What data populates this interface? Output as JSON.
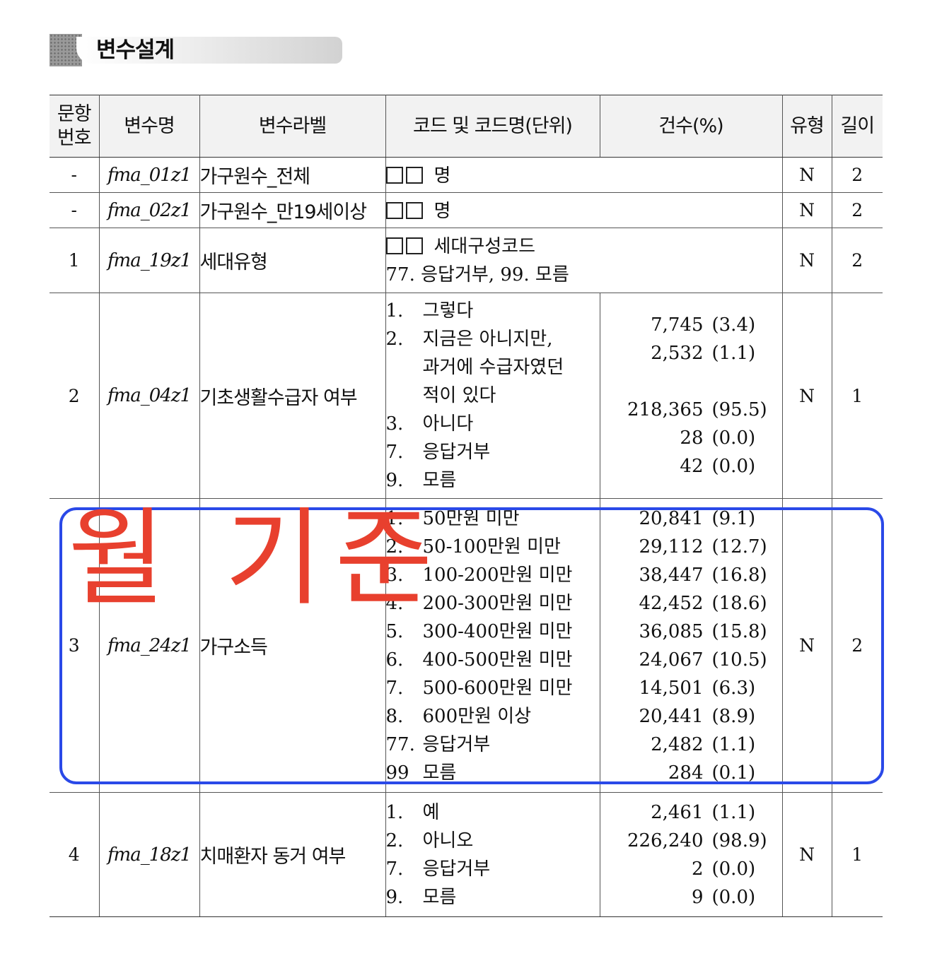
{
  "section": {
    "title": "변수설계"
  },
  "table": {
    "headers": {
      "qnum": "문항 번호",
      "varname": "변수명",
      "varlabel": "변수라벨",
      "code": "코드 및 코드명(단위)",
      "count": "건수(%)",
      "type": "유형",
      "length": "길이"
    },
    "rows": [
      {
        "qnum": "-",
        "varname": "fma_01z1",
        "label": "가구원수_전체",
        "unit": "명",
        "type": "N",
        "length": "2"
      },
      {
        "qnum": "-",
        "varname": "fma_02z1",
        "label": "가구원수_만19세이상",
        "unit": "명",
        "type": "N",
        "length": "2"
      },
      {
        "qnum": "1",
        "varname": "fma_19z1",
        "label": "세대유형",
        "unit": "세대구성코드",
        "extra": "77. 응답거부, 99. 모름",
        "type": "N",
        "length": "2"
      },
      {
        "qnum": "2",
        "varname": "fma_04z1",
        "label": "기초생활수급자 여부",
        "codes": [
          {
            "k": "1.",
            "lines": [
              "그렇다"
            ]
          },
          {
            "k": "2.",
            "lines": [
              "지금은 아니지만,",
              "과거에 수급자였던",
              "적이 있다"
            ]
          },
          {
            "k": "3.",
            "lines": [
              "아니다"
            ]
          },
          {
            "k": "7.",
            "lines": [
              "응답거부"
            ]
          },
          {
            "k": "9.",
            "lines": [
              "모름"
            ]
          }
        ],
        "counts": [
          {
            "n": "7,745",
            "p": "(3.4)"
          },
          {
            "n": "2,532",
            "p": "(1.1)"
          },
          {
            "n": "218,365",
            "p": "(95.5)"
          },
          {
            "n": "28",
            "p": "(0.0)"
          },
          {
            "n": "42",
            "p": "(0.0)"
          }
        ],
        "type": "N",
        "length": "1"
      },
      {
        "qnum": "3",
        "varname": "fma_24z1",
        "label": "가구소득",
        "codes": [
          {
            "k": "1.",
            "lines": [
              "50만원 미만"
            ]
          },
          {
            "k": "2.",
            "lines": [
              "50-100만원 미만"
            ]
          },
          {
            "k": "3.",
            "lines": [
              "100-200만원 미만"
            ]
          },
          {
            "k": "4.",
            "lines": [
              "200-300만원 미만"
            ]
          },
          {
            "k": "5.",
            "lines": [
              "300-400만원 미만"
            ]
          },
          {
            "k": "6.",
            "lines": [
              "400-500만원 미만"
            ]
          },
          {
            "k": "7.",
            "lines": [
              "500-600만원 미만"
            ]
          },
          {
            "k": "8.",
            "lines": [
              "600만원 이상"
            ]
          },
          {
            "k": "77.",
            "lines": [
              "응답거부"
            ]
          },
          {
            "k": "99",
            "lines": [
              "모름"
            ]
          }
        ],
        "counts": [
          {
            "n": "20,841",
            "p": "(9.1)"
          },
          {
            "n": "29,112",
            "p": "(12.7)"
          },
          {
            "n": "38,447",
            "p": "(16.8)"
          },
          {
            "n": "42,452",
            "p": "(18.6)"
          },
          {
            "n": "36,085",
            "p": "(15.8)"
          },
          {
            "n": "24,067",
            "p": "(10.5)"
          },
          {
            "n": "14,501",
            "p": "(6.3)"
          },
          {
            "n": "20,441",
            "p": "(8.9)"
          },
          {
            "n": "2,482",
            "p": "(1.1)"
          },
          {
            "n": "284",
            "p": "(0.1)"
          }
        ],
        "type": "N",
        "length": "2"
      },
      {
        "qnum": "4",
        "varname": "fma_18z1",
        "label": "치매환자 동거 여부",
        "codes": [
          {
            "k": "1.",
            "lines": [
              "예"
            ]
          },
          {
            "k": "2.",
            "lines": [
              "아니오"
            ]
          },
          {
            "k": "7.",
            "lines": [
              "응답거부"
            ]
          },
          {
            "k": "9.",
            "lines": [
              "모름"
            ]
          }
        ],
        "counts": [
          {
            "n": "2,461",
            "p": "(1.1)"
          },
          {
            "n": "226,240",
            "p": "(98.9)"
          },
          {
            "n": "2",
            "p": "(0.0)"
          },
          {
            "n": "9",
            "p": "(0.0)"
          }
        ],
        "type": "N",
        "length": "1"
      }
    ]
  },
  "annotation": {
    "text": "월 기준",
    "text_color": "#e8402e",
    "box_color": "#2a49e8"
  }
}
